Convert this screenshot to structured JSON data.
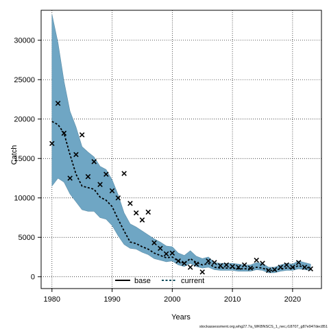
{
  "chart_data": {
    "type": "line",
    "title": "",
    "xlabel": "Years",
    "ylabel": "Catch",
    "xlim": [
      1978.2,
      2024.8
    ],
    "ylim": [
      -1500,
      33800
    ],
    "x_ticks": [
      1980,
      1990,
      2000,
      2010,
      2020
    ],
    "y_ticks": [
      0,
      5000,
      10000,
      15000,
      20000,
      25000,
      30000
    ],
    "grid": true,
    "legend_position": "bottom-center",
    "legend": [
      {
        "name": "base",
        "style": "solid",
        "color": "#000000"
      },
      {
        "name": "current",
        "style": "dashed",
        "color": "#0d4a5a"
      }
    ],
    "band": {
      "color": "#6fa6c4",
      "x": [
        1980,
        1981,
        1982,
        1983,
        1984,
        1985,
        1986,
        1987,
        1988,
        1989,
        1990,
        1991,
        1992,
        1993,
        1994,
        1995,
        1996,
        1997,
        1998,
        1999,
        2000,
        2001,
        2002,
        2003,
        2004,
        2005,
        2006,
        2007,
        2008,
        2009,
        2010,
        2011,
        2012,
        2013,
        2014,
        2015,
        2016,
        2017,
        2018,
        2019,
        2020,
        2021,
        2022,
        2023
      ],
      "lower": [
        11500,
        12500,
        12000,
        10500,
        9500,
        8500,
        8300,
        8300,
        7500,
        7300,
        6500,
        5200,
        4100,
        3600,
        3500,
        3100,
        2800,
        2300,
        2100,
        1900,
        2000,
        1500,
        1300,
        1700,
        1300,
        1100,
        1200,
        900,
        800,
        800,
        800,
        700,
        700,
        700,
        900,
        800,
        500,
        500,
        700,
        800,
        800,
        1000,
        900,
        800
      ],
      "upper": [
        33300,
        29700,
        24800,
        21000,
        19000,
        16500,
        15800,
        15200,
        14000,
        13600,
        12300,
        10400,
        8100,
        6700,
        6300,
        5800,
        5300,
        4800,
        4400,
        3900,
        3800,
        3000,
        2700,
        3300,
        2600,
        2300,
        2500,
        1800,
        1700,
        1700,
        1700,
        1600,
        1500,
        1500,
        1800,
        1700,
        1200,
        1200,
        1500,
        1700,
        1600,
        2000,
        1800,
        1600
      ]
    },
    "series": [
      {
        "name": "current",
        "style": "dashed",
        "x": [
          1980,
          1981,
          1982,
          1983,
          1984,
          1985,
          1986,
          1987,
          1988,
          1989,
          1990,
          1991,
          1992,
          1993,
          1994,
          1995,
          1996,
          1997,
          1998,
          1999,
          2000,
          2001,
          2002,
          2003,
          2004,
          2005,
          2006,
          2007,
          2008,
          2009,
          2010,
          2011,
          2012,
          2013,
          2014,
          2015,
          2016,
          2017,
          2018,
          2019,
          2020,
          2021,
          2022,
          2023
        ],
        "y": [
          19700,
          19300,
          18200,
          15500,
          13000,
          11500,
          11300,
          11100,
          10100,
          9700,
          8900,
          7300,
          5800,
          4400,
          4200,
          3800,
          3500,
          3000,
          2700,
          2400,
          2500,
          2000,
          1700,
          2300,
          1800,
          1500,
          1700,
          1200,
          1100,
          1100,
          1100,
          1000,
          1000,
          1000,
          1200,
          1100,
          800,
          800,
          1000,
          1100,
          1100,
          1400,
          1200,
          1100
        ]
      }
    ],
    "observations": {
      "marker": "x",
      "x": [
        1980,
        1981,
        1982,
        1983,
        1984,
        1985,
        1986,
        1987,
        1988,
        1989,
        1990,
        1991,
        1992,
        1993,
        1994,
        1995,
        1996,
        1997,
        1998,
        1999,
        2000,
        2001,
        2002,
        2003,
        2004,
        2005,
        2006,
        2007,
        2008,
        2009,
        2010,
        2011,
        2012,
        2013,
        2014,
        2015,
        2016,
        2017,
        2018,
        2019,
        2020,
        2021,
        2022,
        2023
      ],
      "y": [
        16900,
        22000,
        18200,
        12500,
        15500,
        18000,
        12700,
        14600,
        11700,
        13000,
        10900,
        10000,
        13100,
        9300,
        8100,
        7200,
        8200,
        4300,
        3600,
        2900,
        3000,
        2000,
        1700,
        1200,
        1600,
        600,
        2000,
        1800,
        1400,
        1500,
        1300,
        1200,
        1500,
        1100,
        2100,
        1700,
        800,
        900,
        1200,
        1500,
        1200,
        1800,
        1200,
        1000
      ]
    }
  },
  "footer": {
    "note": "stockassessment.org,whg27.7a_WKBNSCS_1_nec,r18707_g87e947dec851"
  }
}
